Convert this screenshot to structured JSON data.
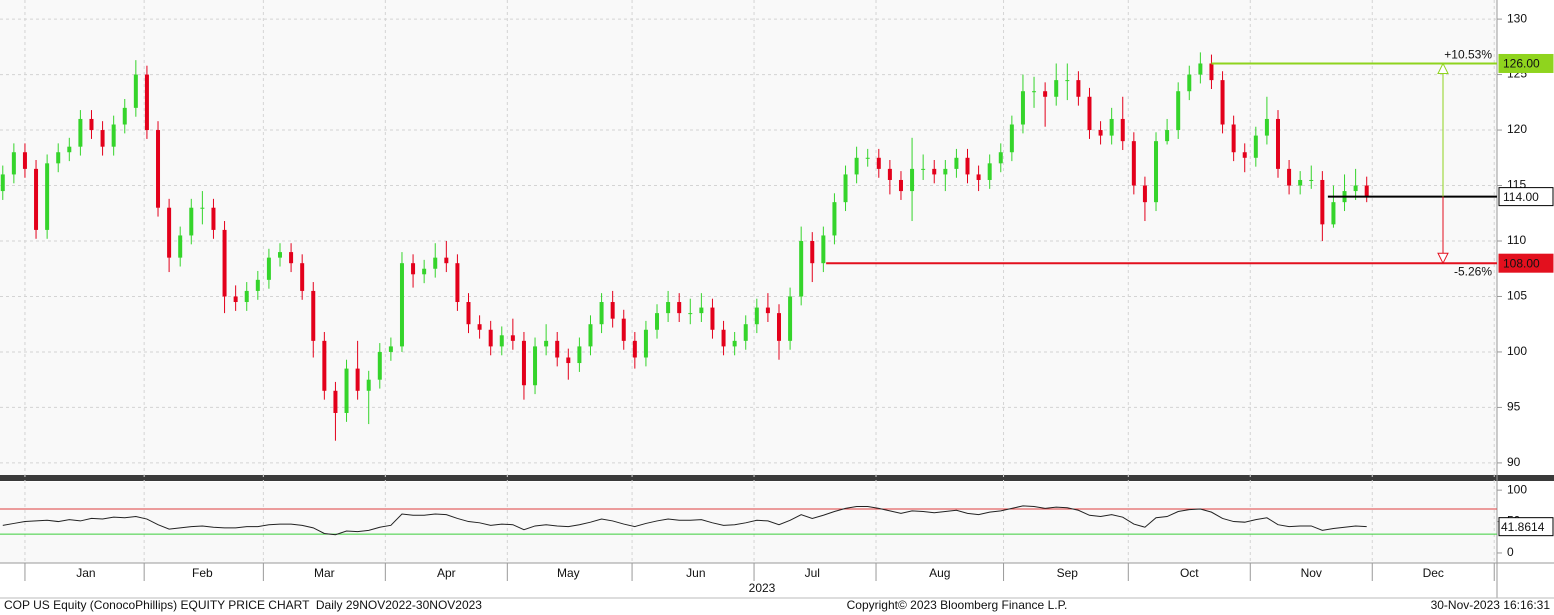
{
  "chart_data": [
    {
      "type": "candlestick",
      "xlim": [
        -0.5,
        269.5
      ],
      "x": [
        0,
        2,
        4,
        6,
        8,
        10,
        12,
        14,
        16,
        18,
        20,
        22,
        24,
        26,
        28,
        30,
        32,
        34,
        36,
        38,
        40,
        42,
        44,
        46,
        48,
        50,
        52,
        54,
        56,
        58,
        60,
        62,
        64,
        66,
        68,
        70,
        72,
        74,
        76,
        78,
        80,
        82,
        84,
        86,
        88,
        90,
        92,
        94,
        96,
        98,
        100,
        102,
        104,
        106,
        108,
        110,
        112,
        114,
        116,
        118,
        120,
        122,
        124,
        126,
        128,
        130,
        132,
        134,
        136,
        138,
        140,
        142,
        144,
        146,
        148,
        150,
        152,
        154,
        156,
        158,
        160,
        162,
        164,
        166,
        168,
        170,
        172,
        174,
        176,
        178,
        180,
        182,
        184,
        186,
        188,
        190,
        192,
        194,
        196,
        198,
        200,
        202,
        204,
        206,
        208,
        210,
        212,
        214,
        216,
        218,
        220,
        222,
        224,
        226,
        228,
        230,
        232,
        234,
        236,
        238,
        240,
        242,
        244,
        246
      ],
      "open": [
        114.5,
        116,
        118,
        116.5,
        111,
        117,
        118,
        118.5,
        121,
        120,
        118.5,
        120.5,
        122,
        125,
        120,
        113,
        108.5,
        110.5,
        113,
        113,
        111,
        105,
        104.5,
        105.5,
        106.5,
        108.5,
        109,
        108,
        105.5,
        101,
        96.5,
        94.5,
        98.5,
        96.5,
        97.5,
        100,
        100.5,
        108,
        107,
        107.5,
        108.5,
        108,
        104.5,
        102.5,
        102,
        100.5,
        101.5,
        101,
        97,
        100.5,
        101,
        99.5,
        99,
        100.5,
        102.5,
        104.5,
        103,
        101,
        99.5,
        102,
        103.5,
        104.5,
        103.5,
        103.5,
        104,
        102,
        100.5,
        101,
        102.5,
        104,
        103.5,
        101,
        105,
        110,
        108,
        110.5,
        113.5,
        116,
        117.5,
        117.5,
        116.5,
        115.5,
        114.5,
        116.5,
        116.5,
        116,
        116.5,
        117.5,
        116,
        115.5,
        117,
        118,
        120.5,
        123.5,
        123.5,
        123,
        124.5,
        124.5,
        123,
        120,
        119.5,
        121,
        119,
        115,
        113.5,
        119,
        120,
        123.5,
        125,
        126,
        124.5,
        120.5,
        118,
        117.5,
        119.5,
        121,
        116.5,
        115,
        115.5,
        115.5,
        111.5,
        113.5,
        114.5,
        115
      ],
      "high": [
        116.8,
        118.8,
        118.8,
        117.3,
        117.8,
        118.8,
        119.3,
        121.8,
        121.8,
        120.8,
        121.3,
        122.8,
        126.3,
        125.8,
        120.8,
        113.8,
        111.3,
        113.8,
        114.5,
        113.8,
        111.8,
        106,
        106.3,
        107.3,
        109.3,
        109.8,
        109.8,
        108.8,
        106.3,
        101.8,
        97.3,
        99.3,
        101,
        98.3,
        100.8,
        101.3,
        109,
        108.8,
        108.3,
        109.8,
        110,
        108.8,
        105.3,
        103.3,
        102.8,
        102.3,
        103,
        101.8,
        101.3,
        102.5,
        101.8,
        100.3,
        101.3,
        103.3,
        105.3,
        105.5,
        103.8,
        101.8,
        102.8,
        104.3,
        105.5,
        105.3,
        104.8,
        105.3,
        104.8,
        102.8,
        101.8,
        103.3,
        104.8,
        105.3,
        104.3,
        105.8,
        111.3,
        110.8,
        111.3,
        114.3,
        116.8,
        118.5,
        118.3,
        118.3,
        117.3,
        116.3,
        119.3,
        117.8,
        117.3,
        117.3,
        118.3,
        118.3,
        116.8,
        117.8,
        118.8,
        121.3,
        125,
        124.8,
        124.3,
        126,
        126,
        125.3,
        123.8,
        120.8,
        122,
        123,
        119.8,
        115.8,
        119.8,
        121,
        124.3,
        125.8,
        127,
        126.8,
        125.3,
        121.3,
        118.8,
        120.3,
        123,
        121.8,
        117.3,
        116.3,
        116.8,
        116.3,
        115,
        116,
        116.5,
        115.8
      ],
      "low": [
        113.7,
        115.2,
        115.7,
        110.2,
        110.2,
        116.2,
        117.2,
        117.7,
        119.2,
        117.7,
        117.7,
        119.7,
        121.2,
        119.2,
        112.2,
        107.2,
        107.7,
        109.7,
        111.5,
        110.2,
        103.5,
        103.7,
        103.7,
        104.7,
        105.7,
        107.7,
        107.2,
        104.7,
        99.5,
        95.7,
        92,
        93.7,
        95.7,
        93.5,
        96.7,
        99.2,
        100,
        105.8,
        106.2,
        106.7,
        107.2,
        103.7,
        101.7,
        101.2,
        99.7,
        99.7,
        100.2,
        95.7,
        96.2,
        99.7,
        98.7,
        97.5,
        98.2,
        99.7,
        101.7,
        102.2,
        100.2,
        98.5,
        98.7,
        101.2,
        102.7,
        102.7,
        102.5,
        102.7,
        101.2,
        99.7,
        99.7,
        100.2,
        101.7,
        102.7,
        99.3,
        100.2,
        104.2,
        106.3,
        107.2,
        109.7,
        112.7,
        115.2,
        116.7,
        115.7,
        114.2,
        113.7,
        111.8,
        115.5,
        115.2,
        114.5,
        115.7,
        115.2,
        114.5,
        114.7,
        116.2,
        117.2,
        119.7,
        122,
        120.3,
        122.2,
        122.7,
        122.2,
        119.2,
        118.7,
        118.7,
        118.2,
        114.2,
        111.8,
        112.7,
        118.7,
        119.2,
        122.7,
        124.2,
        123.7,
        119.7,
        117.2,
        116.2,
        116.7,
        118.7,
        115.7,
        114.2,
        114.2,
        114.7,
        110,
        111.2,
        112.7,
        113.7,
        113.5
      ],
      "close": [
        116,
        118,
        116.5,
        111,
        117,
        118,
        118.5,
        121,
        120,
        118.5,
        120.5,
        122,
        125,
        120,
        113,
        108.5,
        110.5,
        113,
        113,
        111,
        105,
        104.5,
        105.5,
        106.5,
        108.5,
        109,
        108,
        105.5,
        101,
        96.5,
        94.5,
        98.5,
        96.5,
        97.5,
        100,
        100.5,
        108,
        107,
        107.5,
        108.5,
        108,
        104.5,
        102.5,
        102,
        100.5,
        101.5,
        101,
        97,
        100.5,
        101,
        99.5,
        99,
        100.5,
        102.5,
        104.5,
        103,
        101,
        99.5,
        102,
        103.5,
        104.5,
        103.5,
        103.5,
        104,
        102,
        100.5,
        101,
        102.5,
        104,
        103.5,
        101,
        105,
        110,
        108,
        110.5,
        113.5,
        116,
        117.5,
        117.5,
        116.5,
        115.5,
        114.5,
        116.5,
        116.5,
        116,
        116.5,
        117.5,
        116,
        115.5,
        117,
        118,
        120.5,
        123.5,
        123.5,
        123,
        124.5,
        124.5,
        123,
        120,
        119.5,
        121,
        119,
        115,
        113.5,
        119,
        120,
        123.5,
        125,
        126,
        124.5,
        120.5,
        118,
        117.5,
        119.5,
        121,
        116.5,
        115,
        115.5,
        115.5,
        111.5,
        113.5,
        114.5,
        115,
        114
      ],
      "up_color": "#35d42b",
      "down_color": "#e3001b",
      "ylim": [
        89,
        131
      ],
      "yticks": [
        90,
        95,
        100,
        105,
        110,
        115,
        120,
        125,
        130
      ],
      "grid": true,
      "levels": [
        {
          "value": 126,
          "label": "126.00",
          "color": "#8fd41e",
          "x_start": 218
        },
        {
          "value": 114,
          "label": "114.00",
          "color": "#000000",
          "x_start": 239
        },
        {
          "value": 108,
          "label": "108.00",
          "color": "#e3101e",
          "x_start": 148.5
        }
      ],
      "annotations": [
        {
          "text": "+10.53%",
          "from": 114,
          "to": 126,
          "color": "#8fd41e"
        },
        {
          "text": "-5.26%",
          "from": 114,
          "to": 108,
          "color": "#e3101e"
        }
      ]
    },
    {
      "type": "line",
      "xlim": [
        -0.5,
        269.5
      ],
      "x": [
        0,
        2,
        4,
        6,
        8,
        10,
        12,
        14,
        16,
        18,
        20,
        22,
        24,
        26,
        28,
        30,
        32,
        34,
        36,
        38,
        40,
        42,
        44,
        46,
        48,
        50,
        52,
        54,
        56,
        58,
        60,
        62,
        64,
        66,
        68,
        70,
        72,
        74,
        76,
        78,
        80,
        82,
        84,
        86,
        88,
        90,
        92,
        94,
        96,
        98,
        100,
        102,
        104,
        106,
        108,
        110,
        112,
        114,
        116,
        118,
        120,
        122,
        124,
        126,
        128,
        130,
        132,
        134,
        136,
        138,
        140,
        142,
        144,
        146,
        148,
        150,
        152,
        154,
        156,
        158,
        160,
        162,
        164,
        166,
        168,
        170,
        172,
        174,
        176,
        178,
        180,
        182,
        184,
        186,
        188,
        190,
        192,
        194,
        196,
        198,
        200,
        202,
        204,
        206,
        208,
        210,
        212,
        214,
        216,
        218,
        220,
        222,
        224,
        226,
        228,
        230,
        232,
        234,
        236,
        238,
        240,
        242,
        244,
        246
      ],
      "series": [
        {
          "color": "#222222",
          "values": [
            44,
            47,
            50,
            51,
            52,
            50,
            53,
            51,
            55,
            54,
            57,
            56,
            58,
            54,
            45,
            38,
            40,
            42,
            43,
            41,
            40,
            40,
            42,
            42,
            45,
            46,
            46,
            44,
            40,
            31,
            29,
            35,
            34,
            36,
            41,
            44,
            62,
            60,
            60,
            62,
            61,
            55,
            50,
            48,
            44,
            46,
            45,
            37,
            43,
            45,
            43,
            42,
            45,
            49,
            54,
            51,
            46,
            42,
            47,
            51,
            54,
            52,
            52,
            53,
            48,
            44,
            45,
            48,
            52,
            51,
            45,
            52,
            61,
            55,
            60,
            66,
            71,
            74,
            74,
            71,
            67,
            63,
            67,
            66,
            64,
            66,
            68,
            63,
            61,
            65,
            67,
            71,
            75,
            74,
            71,
            73,
            72,
            68,
            60,
            58,
            61,
            57,
            46,
            41,
            56,
            58,
            66,
            69,
            70,
            65,
            55,
            50,
            49,
            53,
            56,
            45,
            42,
            43,
            43,
            36,
            39,
            41,
            43,
            41.8614
          ]
        }
      ],
      "ylim": [
        -16,
        113
      ],
      "yticks": [
        0,
        50,
        100
      ],
      "bands": [
        {
          "value": 70,
          "color": "#e04040"
        },
        {
          "value": 30,
          "color": "#3ccf3c"
        }
      ],
      "xticks": [
        {
          "value": 15,
          "label": "Jan"
        },
        {
          "value": 36,
          "label": "Feb"
        },
        {
          "value": 58,
          "label": "Mar"
        },
        {
          "value": 80,
          "label": "Apr"
        },
        {
          "value": 102,
          "label": "May"
        },
        {
          "value": 125,
          "label": "Jun"
        },
        {
          "value": 146,
          "label": "Jul"
        },
        {
          "value": 169,
          "label": "Aug"
        },
        {
          "value": 192,
          "label": "Sep"
        },
        {
          "value": 214,
          "label": "Oct"
        },
        {
          "value": 236,
          "label": "Nov"
        },
        {
          "value": 258,
          "label": "Dec"
        }
      ],
      "year_label": "2023"
    }
  ],
  "footer": {
    "left": "COP US Equity (ConocoPhillips) EQUITY PRICE CHART  Daily 29NOV2022-30NOV2023",
    "center": "Copyright© 2023 Bloomberg Finance L.P.",
    "right": "30-Nov-2023 16:16:31"
  }
}
